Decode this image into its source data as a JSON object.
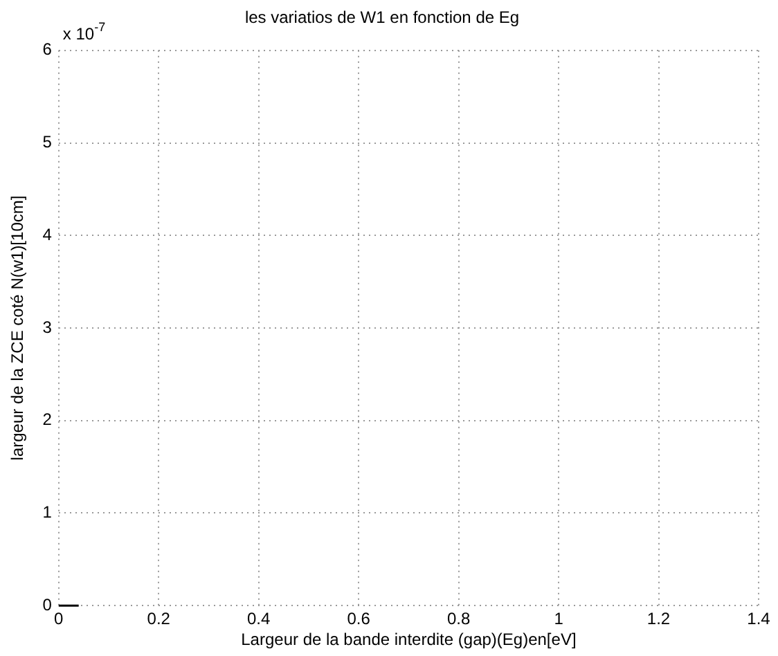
{
  "chart_data": {
    "type": "line",
    "title": "les variatios de W1 en fonction de Eg",
    "xlabel": "Largeur de la bande interdite (gap)(Eg)en[eV]",
    "ylabel": "largeur de la ZCE coté N(w1)[10cm]",
    "annotations": [
      "x 10$^{-7}$"
    ],
    "series": [
      {
        "color": "#000000",
        "x": [
          0,
          0.04
        ],
        "values": [
          0,
          0
        ]
      }
    ],
    "xlim": [
      0,
      1.4
    ],
    "xticks": [
      0,
      0.2,
      0.4,
      0.6,
      0.8,
      1,
      1.2,
      1.4
    ],
    "ylim": [
      0,
      6
    ],
    "yticks": [
      0,
      1,
      2,
      3,
      4,
      5,
      6
    ],
    "grid": true,
    "line_style": "solid",
    "marker": "none",
    "legend": false
  }
}
